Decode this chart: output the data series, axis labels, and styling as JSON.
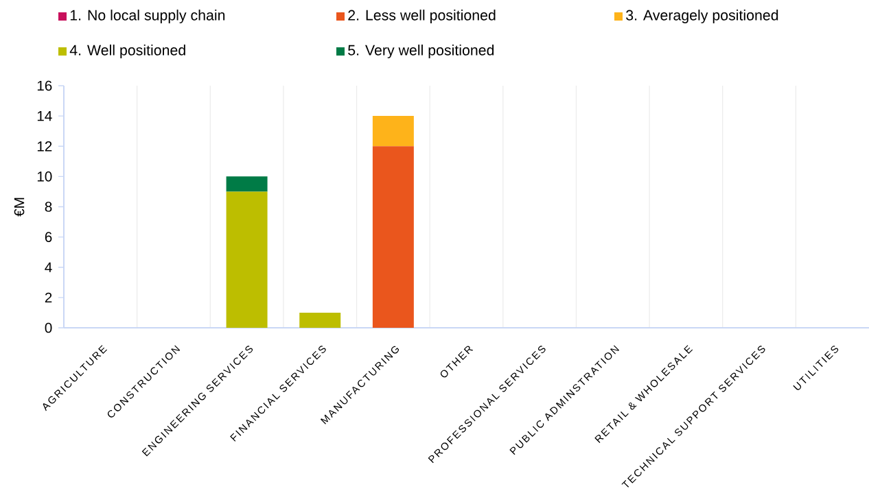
{
  "chart_data": {
    "type": "bar",
    "stacked": true,
    "ylabel": "€M",
    "categories": [
      "AGRICULTURE",
      "CONSTRUCTION",
      "ENGINEERING SERVICES",
      "FINANCIAL SERVICES",
      "MANUFACTURING",
      "OTHER",
      "PROFESSIONAL SERVICES",
      "PUBLIC ADMINSTRATION",
      "RETAIL & WHOLESALE",
      "TECHNICAL SUPPORT SERVICES",
      "UTILITIES"
    ],
    "series": [
      {
        "name": "1. No local supply chain",
        "color": "#c8105c",
        "values": [
          0,
          0,
          0,
          0,
          0,
          0,
          0,
          0,
          0,
          0,
          0
        ]
      },
      {
        "name": "2. Less well positioned",
        "color": "#ea561d",
        "values": [
          0,
          0,
          0,
          0,
          12,
          0,
          0,
          0,
          0,
          0,
          0
        ]
      },
      {
        "name": "3. Averagely positioned",
        "color": "#feb31a",
        "values": [
          0,
          0,
          0,
          0,
          2,
          0,
          0,
          0,
          0,
          0,
          0
        ]
      },
      {
        "name": "4. Well positioned",
        "color": "#bdbe00",
        "values": [
          0,
          0,
          9,
          1,
          0,
          0,
          0,
          0,
          0,
          0,
          0
        ]
      },
      {
        "name": "5. Very well positioned",
        "color": "#007b46",
        "values": [
          0,
          0,
          1,
          0,
          0,
          0,
          0,
          0,
          0,
          0,
          0
        ]
      }
    ],
    "ylim": [
      0,
      16
    ],
    "yticks": [
      0,
      2,
      4,
      6,
      8,
      10,
      12,
      14,
      16
    ],
    "grid": "x",
    "legend": "top"
  }
}
